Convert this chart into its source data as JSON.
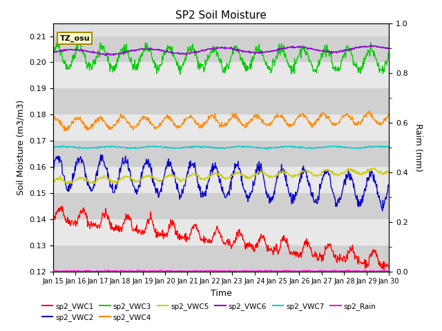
{
  "title": "SP2 Soil Moisture",
  "xlabel": "Time",
  "ylabel_left": "Soil Moisture (m3/m3)",
  "ylabel_right": "Raim (mm)",
  "ylim_left": [
    0.12,
    0.215
  ],
  "ylim_right": [
    0.0,
    1.0
  ],
  "xtick_labels": [
    "Jan 15",
    "Jan 16",
    "Jan 17",
    "Jan 18",
    "Jan 19",
    "Jan 20",
    "Jan 21",
    "Jan 22",
    "Jan 23",
    "Jan 24",
    "Jan 25",
    "Jan 26",
    "Jan 27",
    "Jan 28",
    "Jan 29",
    "Jan 30"
  ],
  "yticks_left": [
    0.12,
    0.13,
    0.14,
    0.15,
    0.16,
    0.17,
    0.18,
    0.19,
    0.2,
    0.21
  ],
  "yticks_right": [
    0.0,
    0.2,
    0.4,
    0.6,
    0.8,
    1.0
  ],
  "legend_row1": [
    "sp2_VWC1",
    "sp2_VWC2",
    "sp2_VWC3",
    "sp2_VWC4",
    "sp2_VWC5",
    "sp2_VWC6"
  ],
  "legend_row2": [
    "sp2_VWC7",
    "sp2_Rain"
  ],
  "colors": {
    "sp2_VWC1": "#ff0000",
    "sp2_VWC2": "#0000cc",
    "sp2_VWC3": "#00cc00",
    "sp2_VWC4": "#ff8800",
    "sp2_VWC5": "#cccc00",
    "sp2_VWC6": "#8800cc",
    "sp2_VWC7": "#00cccc",
    "sp2_Rain": "#ff00cc"
  },
  "annotation_text": "TZ_osu",
  "background_color": "#ffffff",
  "axes_bg_color": "#e0e0e0",
  "band_colors": [
    "#d0d0d0",
    "#e8e8e8"
  ],
  "n_points": 720
}
